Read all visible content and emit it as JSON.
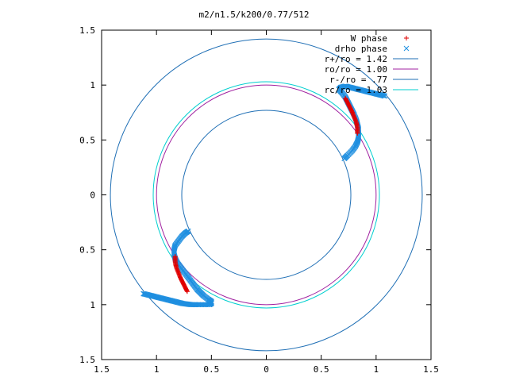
{
  "chart_data": {
    "type": "scatter",
    "title": "m2/n1.5/k200/0.77/512",
    "xlim": [
      -1.5,
      1.5
    ],
    "ylim": [
      -1.5,
      1.5
    ],
    "x_ticks": [
      {
        "value": -1.5,
        "label": "1.5"
      },
      {
        "value": -1.0,
        "label": "1"
      },
      {
        "value": -0.5,
        "label": "0.5"
      },
      {
        "value": 0.0,
        "label": "0"
      },
      {
        "value": 0.5,
        "label": "0.5"
      },
      {
        "value": 1.0,
        "label": "1"
      },
      {
        "value": 1.5,
        "label": "1.5"
      }
    ],
    "y_ticks": [
      {
        "value": 1.5,
        "label": "1.5"
      },
      {
        "value": 1.0,
        "label": "1"
      },
      {
        "value": 0.5,
        "label": "0.5"
      },
      {
        "value": 0.0,
        "label": "0"
      },
      {
        "value": -0.5,
        "label": "0.5"
      },
      {
        "value": -1.0,
        "label": "1"
      },
      {
        "value": -1.5,
        "label": "1.5"
      }
    ],
    "grid": false,
    "legend_position": "top-right",
    "circles": [
      {
        "name": "r+/ro = 1.42",
        "radius": 1.42,
        "color": "#1f6fb5"
      },
      {
        "name": "ro/ro = 1.00",
        "radius": 1.0,
        "color": "#a020a0"
      },
      {
        "name": "r-/ro = .77",
        "radius": 0.77,
        "color": "#1f6fb5"
      },
      {
        "name": "rc/ro = 1.03",
        "radius": 1.03,
        "color": "#00cfcf"
      }
    ],
    "series": [
      {
        "name": "W phase",
        "marker": "+",
        "color": "#e00000",
        "points": [
          [
            0.72,
            0.88
          ],
          [
            0.74,
            0.84
          ],
          [
            0.76,
            0.8
          ],
          [
            0.78,
            0.76
          ],
          [
            0.8,
            0.71
          ],
          [
            0.82,
            0.66
          ],
          [
            0.83,
            0.61
          ],
          [
            0.83,
            0.56
          ],
          [
            -0.72,
            -0.88
          ],
          [
            -0.74,
            -0.84
          ],
          [
            -0.76,
            -0.8
          ],
          [
            -0.78,
            -0.76
          ],
          [
            -0.8,
            -0.71
          ],
          [
            -0.82,
            -0.66
          ],
          [
            -0.83,
            -0.61
          ],
          [
            -0.83,
            -0.56
          ]
        ]
      },
      {
        "name": "drho phase",
        "marker": "x",
        "color": "#1f8fe0",
        "points": [
          [
            1.08,
            0.9
          ],
          [
            1.04,
            0.91
          ],
          [
            1.0,
            0.92
          ],
          [
            0.96,
            0.93
          ],
          [
            0.92,
            0.94
          ],
          [
            0.88,
            0.95
          ],
          [
            0.84,
            0.96
          ],
          [
            0.8,
            0.97
          ],
          [
            0.76,
            0.98
          ],
          [
            0.72,
            0.99
          ],
          [
            0.68,
            0.98
          ],
          [
            0.66,
            0.96
          ],
          [
            0.69,
            0.93
          ],
          [
            0.72,
            0.89
          ],
          [
            0.74,
            0.85
          ],
          [
            0.76,
            0.81
          ],
          [
            0.78,
            0.77
          ],
          [
            0.8,
            0.73
          ],
          [
            0.82,
            0.68
          ],
          [
            0.83,
            0.64
          ],
          [
            0.84,
            0.6
          ],
          [
            0.84,
            0.56
          ],
          [
            0.84,
            0.52
          ],
          [
            0.83,
            0.48
          ],
          [
            0.81,
            0.44
          ],
          [
            0.78,
            0.4
          ],
          [
            0.74,
            0.36
          ],
          [
            0.71,
            0.33
          ],
          [
            -1.12,
            -0.9
          ],
          [
            -1.08,
            -0.91
          ],
          [
            -1.04,
            -0.92
          ],
          [
            -1.0,
            -0.93
          ],
          [
            -0.96,
            -0.94
          ],
          [
            -0.92,
            -0.95
          ],
          [
            -0.88,
            -0.96
          ],
          [
            -0.84,
            -0.97
          ],
          [
            -0.8,
            -0.98
          ],
          [
            -0.76,
            -0.99
          ],
          [
            -0.72,
            -0.995
          ],
          [
            -0.68,
            -1.0
          ],
          [
            -0.64,
            -1.0
          ],
          [
            -0.58,
            -1.0
          ],
          [
            -0.52,
            -1.0
          ],
          [
            -0.5,
            -0.99
          ],
          [
            -0.5,
            -0.97
          ],
          [
            -0.53,
            -0.95
          ],
          [
            -0.57,
            -0.92
          ],
          [
            -0.6,
            -0.89
          ],
          [
            -0.63,
            -0.86
          ],
          [
            -0.66,
            -0.82
          ],
          [
            -0.69,
            -0.78
          ],
          [
            -0.72,
            -0.74
          ],
          [
            -0.75,
            -0.7
          ],
          [
            -0.78,
            -0.66
          ],
          [
            -0.81,
            -0.62
          ],
          [
            -0.83,
            -0.58
          ],
          [
            -0.84,
            -0.54
          ],
          [
            -0.84,
            -0.5
          ],
          [
            -0.83,
            -0.46
          ],
          [
            -0.8,
            -0.42
          ],
          [
            -0.77,
            -0.38
          ],
          [
            -0.74,
            -0.35
          ],
          [
            -0.71,
            -0.33
          ]
        ]
      }
    ]
  }
}
